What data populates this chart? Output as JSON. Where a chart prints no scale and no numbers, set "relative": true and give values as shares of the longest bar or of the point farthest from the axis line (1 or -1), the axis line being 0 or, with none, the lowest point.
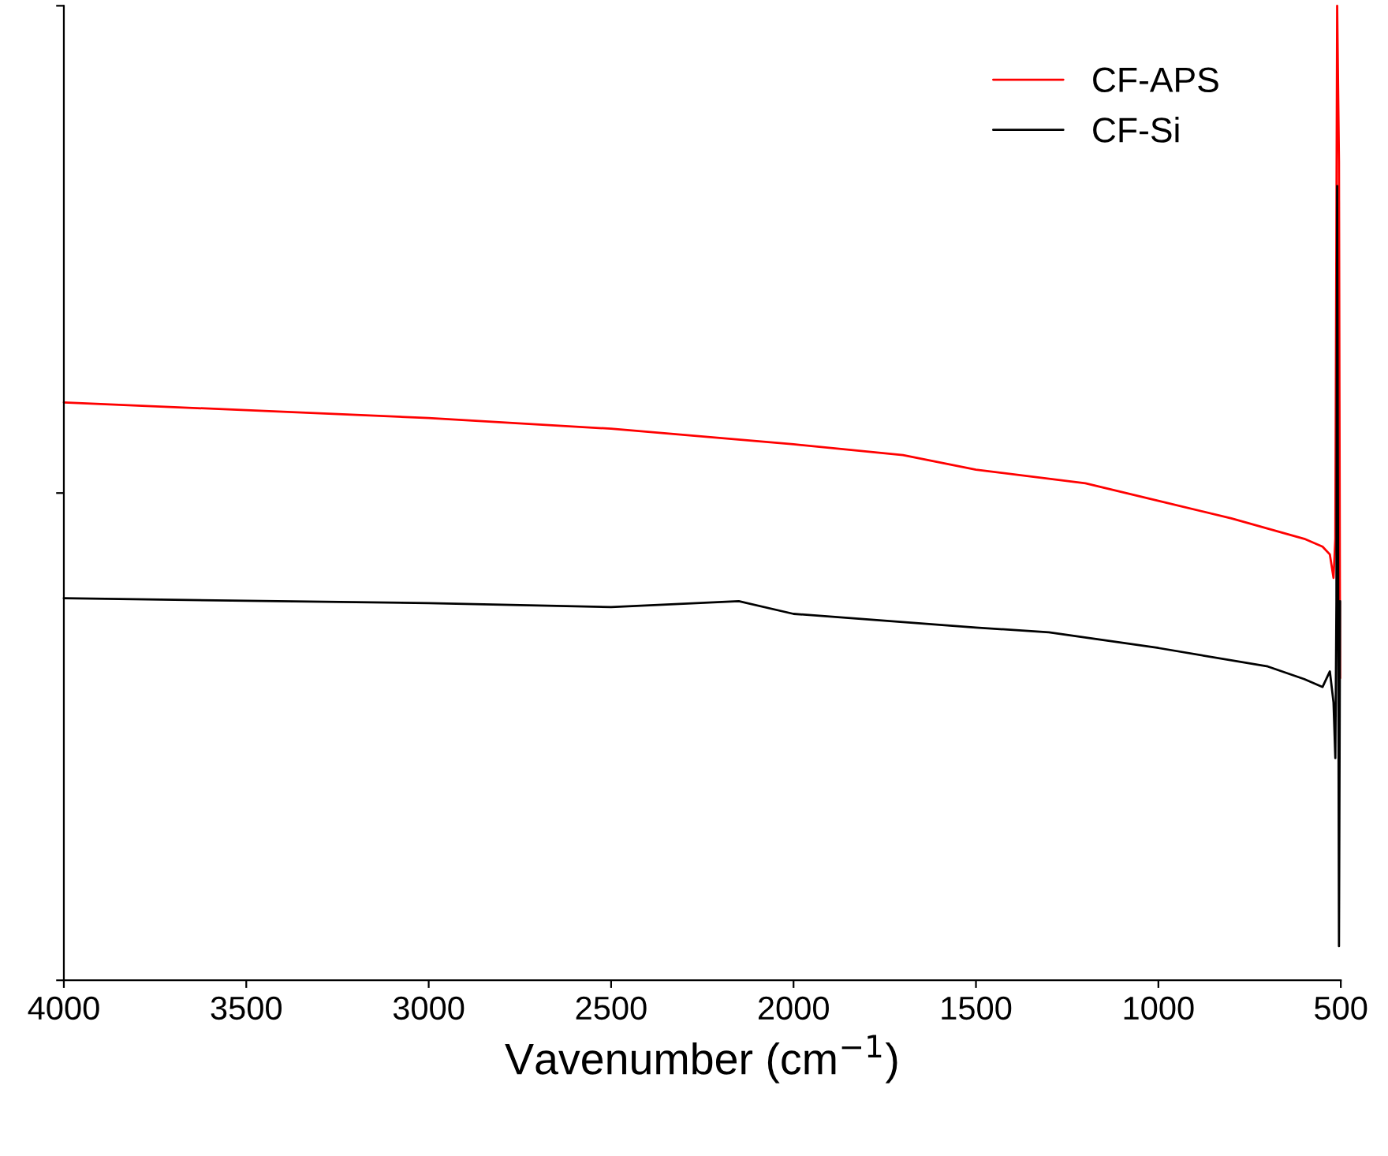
{
  "chart_data": {
    "type": "line",
    "relative": true,
    "xlabel": "Vavenumber (cm$^{−1}$)",
    "xlim": [
      4000,
      500
    ],
    "xticks": [
      4000,
      3500,
      3000,
      2500,
      2000,
      1500,
      1000,
      500
    ],
    "legend": "top right",
    "tick_labels": "x",
    "grid": false,
    "series": [
      {
        "name": "CF-APS",
        "color": "#ff0000",
        "x": [
          4000,
          3500,
          3000,
          2500,
          2000,
          1700,
          1500,
          1200,
          1000,
          800,
          600,
          550,
          530,
          520,
          515,
          510,
          505,
          502
        ],
        "values": [
          0.593,
          0.585,
          0.577,
          0.566,
          0.55,
          0.539,
          0.524,
          0.51,
          0.492,
          0.474,
          0.453,
          0.445,
          0.437,
          0.413,
          0.453,
          1.0,
          0.84,
          0.31
        ]
      },
      {
        "name": "CF-Si",
        "color": "#000000",
        "x": [
          4000,
          3000,
          2500,
          2150,
          2000,
          1500,
          1300,
          1000,
          700,
          600,
          550,
          530,
          520,
          515,
          512,
          510,
          508,
          505,
          502
        ],
        "values": [
          0.392,
          0.387,
          0.383,
          0.389,
          0.376,
          0.362,
          0.357,
          0.341,
          0.322,
          0.309,
          0.301,
          0.317,
          0.285,
          0.228,
          0.389,
          0.815,
          0.518,
          0.035,
          0.389
        ]
      }
    ]
  }
}
